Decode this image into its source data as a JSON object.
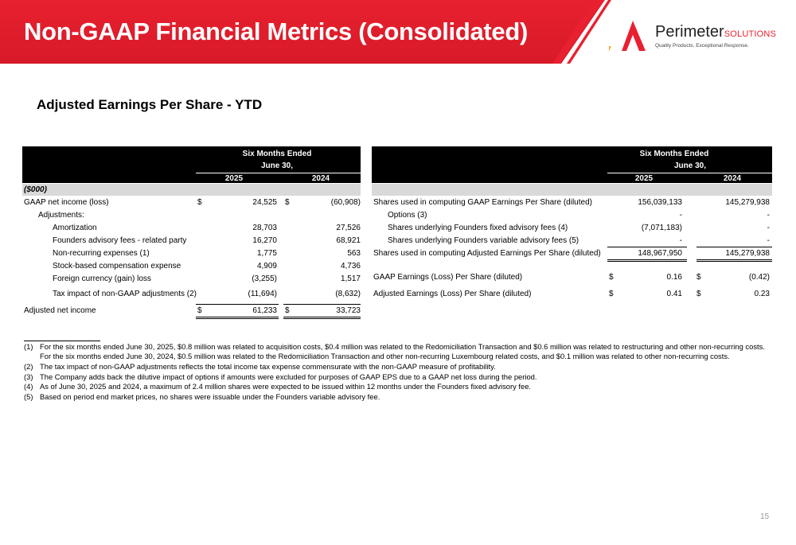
{
  "header": {
    "title": "Non-GAAP Financial Metrics (Consolidated)",
    "logo_word": "Perimeter",
    "logo_solutions": "SOLUTIONS",
    "logo_tagline": "Quality Products. Exceptional Response."
  },
  "subtitle": "Adjusted Earnings Per Share - YTD",
  "left_table": {
    "period_title": "Six Months Ended",
    "period_date": "June 30,",
    "year1": "2025",
    "year2": "2024",
    "units": "($000)",
    "rows": [
      {
        "label": "GAAP net income (loss)",
        "c1": "$",
        "v1": "24,525",
        "c2": "$",
        "v2": "(60,908)"
      },
      {
        "label": "Adjustments:",
        "c1": "",
        "v1": "",
        "c2": "",
        "v2": ""
      },
      {
        "label": "Amortization",
        "c1": "",
        "v1": "28,703",
        "c2": "",
        "v2": "27,526"
      },
      {
        "label": "Founders advisory fees - related party",
        "c1": "",
        "v1": "16,270",
        "c2": "",
        "v2": "68,921"
      },
      {
        "label": "Non-recurring expenses (1)",
        "c1": "",
        "v1": "1,775",
        "c2": "",
        "v2": "563"
      },
      {
        "label": "Stock-based compensation expense",
        "c1": "",
        "v1": "4,909",
        "c2": "",
        "v2": "4,736"
      },
      {
        "label": "Foreign currency (gain) loss",
        "c1": "",
        "v1": "(3,255)",
        "c2": "",
        "v2": "1,517"
      },
      {
        "label": "Tax impact of non-GAAP adjustments (2)",
        "c1": "",
        "v1": "(11,694)",
        "c2": "",
        "v2": "(8,632)"
      },
      {
        "label": "Adjusted net income",
        "c1": "$",
        "v1": "61,233",
        "c2": "$",
        "v2": "33,723"
      }
    ]
  },
  "right_table": {
    "period_title": "Six Months Ended",
    "period_date": "June 30,",
    "year1": "2025",
    "year2": "2024",
    "rows": [
      {
        "label": "Shares used in computing GAAP Earnings Per Share (diluted)",
        "c1": "",
        "v1": "156,039,133",
        "c2": "",
        "v2": "145,279,938"
      },
      {
        "label": "Options (3)",
        "c1": "",
        "v1": "-",
        "c2": "",
        "v2": "-"
      },
      {
        "label": "Shares underlying Founders fixed advisory fees (4)",
        "c1": "",
        "v1": "(7,071,183)",
        "c2": "",
        "v2": "-"
      },
      {
        "label": "Shares underlying Founders variable advisory fees (5)",
        "c1": "",
        "v1": "-",
        "c2": "",
        "v2": "-"
      },
      {
        "label": "Shares used in computing Adjusted Earnings Per Share (diluted)",
        "c1": "",
        "v1": "148,967,950",
        "c2": "",
        "v2": "145,279,938"
      },
      {
        "label": "GAAP Earnings (Loss) Per Share (diluted)",
        "c1": "$",
        "v1": "0.16",
        "c2": "$",
        "v2": "(0.42)"
      },
      {
        "label": "Adjusted Earnings (Loss) Per Share (diluted)",
        "c1": "$",
        "v1": "0.41",
        "c2": "$",
        "v2": "0.23"
      }
    ]
  },
  "footnotes": [
    {
      "num": "(1)",
      "text": "For the six months ended June 30, 2025, $0.8 million was related to acquisition costs, $0.4 million was related to the Redomiciliation Transaction and $0.6 million was related to restructuring and other non-recurring costs. For the six months ended June 30, 2024, $0.5 million was related to the Redomiciliation Transaction and other non-recurring Luxembourg related costs, and $0.1 million was related to other non-recurring costs."
    },
    {
      "num": "(2)",
      "text": "The tax impact of non-GAAP adjustments reflects the total income tax expense commensurate with the non-GAAP measure of profitability."
    },
    {
      "num": "(3)",
      "text": "The Company adds back the dilutive impact of options if amounts were excluded for purposes of GAAP EPS due to a GAAP net loss during the period."
    },
    {
      "num": "(4)",
      "text": "As of June 30, 2025 and 2024, a maximum of 2.4 million shares were expected to be issued within 12 months under the Founders fixed advisory fee."
    },
    {
      "num": "(5)",
      "text": "Based on period end market prices, no shares were issuable under the Founders variable advisory fee."
    }
  ],
  "page_number": "15",
  "colors": {
    "brand_red": "#e8202f",
    "header_black": "#000000",
    "shade_gray": "#d9d9d9"
  }
}
